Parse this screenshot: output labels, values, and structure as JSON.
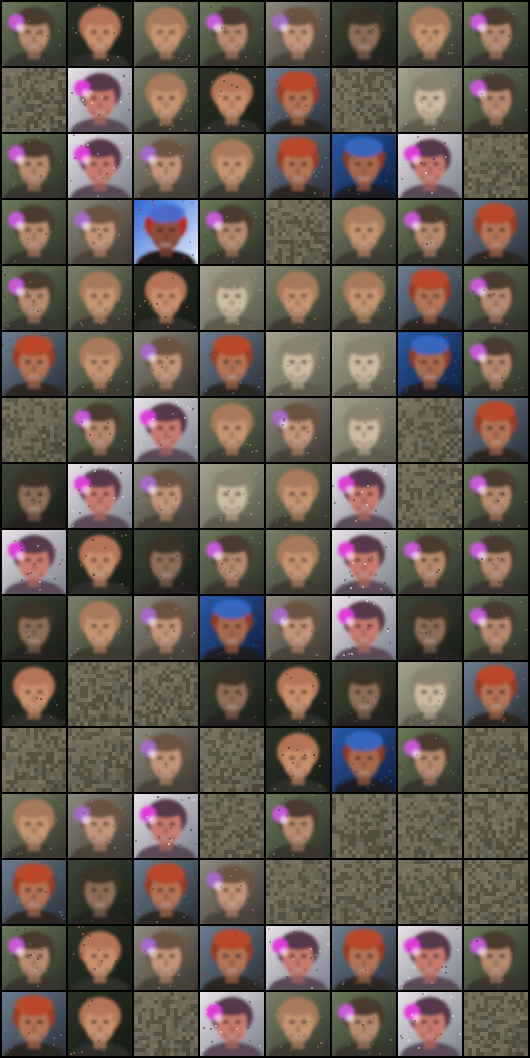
{
  "grid": {
    "title": "",
    "rows": 16,
    "cols": 8,
    "background_color": "#000000",
    "tiles": [
      [
        "flower-a",
        "bald-a",
        "bald-b",
        "flower-a",
        "flower-b",
        "dark-a",
        "bald-b",
        "flower-a"
      ],
      [
        "noise",
        "flower-c",
        "bald-b",
        "bald-a",
        "red-a",
        "noise",
        "pale-a",
        "flower-a"
      ],
      [
        "flower-a",
        "flower-c",
        "flower-b",
        "bald-b",
        "red-a",
        "blue-a",
        "flower-c",
        "noise"
      ],
      [
        "flower-a",
        "flower-b",
        "blue-b",
        "flower-a",
        "noise",
        "bald-b",
        "flower-a",
        "red-a"
      ],
      [
        "flower-a",
        "bald-b",
        "bald-a",
        "pale-a",
        "bald-b",
        "bald-b",
        "red-a",
        "flower-a"
      ],
      [
        "red-a",
        "bald-b",
        "flower-b",
        "red-a",
        "pale-a",
        "pale-a",
        "blue-a",
        "flower-a"
      ],
      [
        "noise",
        "flower-a",
        "flower-c",
        "bald-b",
        "flower-b",
        "pale-a",
        "noise",
        "red-a"
      ],
      [
        "dark-a",
        "flower-c",
        "flower-b",
        "pale-a",
        "bald-b",
        "flower-c",
        "noise",
        "flower-a"
      ],
      [
        "flower-c",
        "bald-a",
        "dark-a",
        "flower-a",
        "bald-b",
        "flower-c",
        "flower-a",
        "flower-a"
      ],
      [
        "dark-a",
        "bald-b",
        "flower-b",
        "blue-a",
        "flower-b",
        "flower-c",
        "dark-a",
        "flower-a"
      ],
      [
        "bald-a",
        "noise",
        "noise",
        "dark-a",
        "bald-a",
        "dark-a",
        "pale-a",
        "red-a"
      ],
      [
        "noise",
        "noise",
        "flower-b",
        "noise",
        "bald-a",
        "blue-a",
        "flower-a",
        "noise"
      ],
      [
        "bald-b",
        "flower-b",
        "flower-c",
        "noise",
        "flower-a",
        "noise",
        "noise",
        "noise"
      ],
      [
        "red-a",
        "dark-a",
        "red-a",
        "flower-b",
        "noise",
        "noise",
        "noise",
        "noise"
      ],
      [
        "flower-a",
        "bald-a",
        "flower-b",
        "red-a",
        "flower-c",
        "red-a",
        "flower-c",
        "flower-a"
      ],
      [
        "red-a",
        "bald-a",
        "noise",
        "flower-c",
        "bald-b",
        "flower-a",
        "flower-c",
        "noise"
      ]
    ]
  },
  "palettes": {
    "flower-a": {
      "bg1": "#6b7a5a",
      "bg2": "#2a2f26",
      "hair": "#4a3a2e",
      "skin": "#b88a6e",
      "accent": "#c85ad6",
      "shirt": "#39352e"
    },
    "flower-b": {
      "bg1": "#8d8b7c",
      "bg2": "#3a3530",
      "hair": "#6a5240",
      "skin": "#c49478",
      "accent": "#a66ac8",
      "shirt": "#4a4238"
    },
    "flower-c": {
      "bg1": "#e8e2e6",
      "bg2": "#7a7f8d",
      "hair": "#54384a",
      "skin": "#c87a6e",
      "accent": "#e03cd8",
      "shirt": "#5a4a58"
    },
    "bald-a": {
      "bg1": "#2c3226",
      "bg2": "#151a14",
      "hair": "#b47456",
      "skin": "#c8906a",
      "accent": "#b47456",
      "shirt": "#2e2e2a"
    },
    "bald-b": {
      "bg1": "#7a8068",
      "bg2": "#30352a",
      "hair": "#a87a5a",
      "skin": "#c6946e",
      "accent": "#a87a5a",
      "shirt": "#3c3a32"
    },
    "red-a": {
      "bg1": "#6a7e92",
      "bg2": "#2a3038",
      "hair": "#9c3a22",
      "skin": "#b47454",
      "accent": "#c04a2a",
      "shirt": "#2a2620"
    },
    "blue-a": {
      "bg1": "#2a5aa8",
      "bg2": "#0e1e3a",
      "hair": "#8e3a26",
      "skin": "#a86a4e",
      "accent": "#2a6ed8",
      "shirt": "#1e1a22"
    },
    "blue-b": {
      "bg1": "#2e68d6",
      "bg2": "#e6eefa",
      "hair": "#b8261e",
      "skin": "#8e4e3a",
      "accent": "#3a78e8",
      "shirt": "#1a1418"
    },
    "pale-a": {
      "bg1": "#a6a48e",
      "bg2": "#56584a",
      "hair": "#8a8270",
      "skin": "#cdbca2",
      "accent": "#a89a86",
      "shirt": "#5e5a4c"
    },
    "dark-a": {
      "bg1": "#3e4636",
      "bg2": "#181c16",
      "hair": "#3a3026",
      "skin": "#8e6e58",
      "accent": "#5a4a3c",
      "shirt": "#262420"
    },
    "noise": {
      "bg1": "#6e6a58",
      "bg2": "#3c3c30",
      "hair": "#58503f",
      "skin": "#857a62",
      "accent": "#7a7464",
      "shirt": "#403c32"
    }
  }
}
